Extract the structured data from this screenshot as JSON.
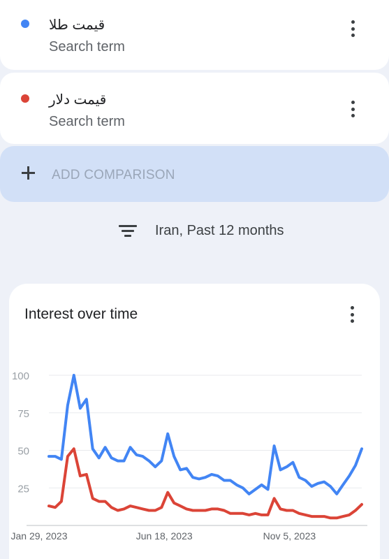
{
  "terms": [
    {
      "name": "قیمت طلا",
      "subtitle": "Search term",
      "color": "#4285f4",
      "menu_icon": "more-vert-icon"
    },
    {
      "name": "قیمت دلار",
      "subtitle": "Search term",
      "color": "#db4437",
      "menu_icon": "more-vert-icon"
    }
  ],
  "add_comparison": {
    "label": "ADD COMPARISON",
    "icon": "plus-icon"
  },
  "filter": {
    "label": "Iran, Past 12 months",
    "icon": "filter-list-icon"
  },
  "chart_card": {
    "title": "Interest over time",
    "menu_icon": "more-vert-icon"
  },
  "chart_data": {
    "type": "line",
    "title": "Interest over time",
    "xlabel": "",
    "ylabel": "",
    "ylim": [
      0,
      100
    ],
    "yticks": [
      100,
      75,
      50,
      25
    ],
    "xtick_labels": [
      {
        "label": "Jan 29, 2023",
        "index": 0
      },
      {
        "label": "Jun 18, 2023",
        "index": 20
      },
      {
        "label": "Nov 5, 2023",
        "index": 40
      }
    ],
    "grid": true,
    "series": [
      {
        "name": "قیمت طلا",
        "color": "#4285f4",
        "values": [
          46,
          46,
          44,
          80,
          100,
          78,
          84,
          51,
          45,
          52,
          45,
          43,
          43,
          52,
          47,
          46,
          43,
          39,
          43,
          61,
          46,
          37,
          38,
          32,
          31,
          32,
          34,
          33,
          30,
          30,
          27,
          25,
          21,
          24,
          27,
          24,
          53,
          37,
          39,
          42,
          32,
          30,
          26,
          28,
          29,
          26,
          21,
          27,
          33,
          40,
          51
        ]
      },
      {
        "name": "قیمت دلار",
        "color": "#db4437",
        "values": [
          13,
          12,
          16,
          46,
          51,
          33,
          34,
          18,
          16,
          16,
          12,
          10,
          11,
          13,
          12,
          11,
          10,
          10,
          12,
          22,
          15,
          13,
          11,
          10,
          10,
          10,
          11,
          11,
          10,
          8,
          8,
          8,
          7,
          8,
          7,
          7,
          18,
          11,
          10,
          10,
          8,
          7,
          6,
          6,
          6,
          5,
          5,
          6,
          7,
          10,
          14
        ]
      }
    ]
  }
}
